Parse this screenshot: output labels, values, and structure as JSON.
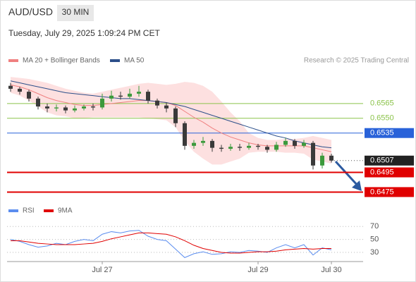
{
  "header": {
    "title": "AUD/USD",
    "timeframe": "30 MIN",
    "timestamp": "Tuesday, July 29, 2025 1:09:24 PM CET",
    "credit": "Research © 2025 Trading Central"
  },
  "chart_data": [
    {
      "type": "candlestick",
      "categories": [
        null,
        null,
        null,
        null,
        null,
        null,
        null,
        null,
        null,
        null,
        "Jul 27",
        null,
        null,
        null,
        null,
        null,
        null,
        null,
        null,
        null,
        null,
        null,
        null,
        null,
        null,
        null,
        null,
        "Jul 29",
        null,
        null,
        null,
        null,
        null,
        null,
        null,
        "Jul 30"
      ],
      "open": [
        0.6583,
        0.658,
        0.6577,
        0.657,
        0.6562,
        0.656,
        0.6561,
        0.6558,
        0.656,
        0.6562,
        0.6561,
        0.657,
        0.6573,
        0.6572,
        0.6575,
        0.6577,
        0.6568,
        0.6563,
        0.656,
        0.6545,
        0.6522,
        0.6525,
        0.6527,
        0.652,
        0.6519,
        0.6521,
        0.652,
        0.6522,
        0.6521,
        0.6518,
        0.6523,
        0.6527,
        0.6522,
        0.6525,
        0.6502,
        0.6512
      ],
      "high": [
        0.6586,
        0.6582,
        0.6579,
        0.6572,
        0.6565,
        0.6564,
        0.6563,
        0.6563,
        0.6564,
        0.6565,
        0.6575,
        0.6578,
        0.6577,
        0.658,
        0.6583,
        0.6579,
        0.657,
        0.6566,
        0.6562,
        0.6547,
        0.6528,
        0.6531,
        0.6529,
        0.6523,
        0.6524,
        0.6524,
        0.6525,
        0.6524,
        0.6523,
        0.6526,
        0.653,
        0.6529,
        0.6528,
        0.6527,
        0.6515,
        0.6514
      ],
      "low": [
        0.6577,
        0.6574,
        0.6567,
        0.6559,
        0.6556,
        0.6557,
        0.6555,
        0.6556,
        0.6558,
        0.6558,
        0.6559,
        0.6567,
        0.6569,
        0.657,
        0.6572,
        0.6565,
        0.656,
        0.6556,
        0.6541,
        0.6518,
        0.6519,
        0.6522,
        0.6516,
        0.6516,
        0.6517,
        0.6517,
        0.6518,
        0.6518,
        0.6515,
        0.6516,
        0.6521,
        0.6519,
        0.652,
        0.6498,
        0.6499,
        0.6505
      ],
      "close": [
        0.658,
        0.6577,
        0.657,
        0.6562,
        0.656,
        0.6561,
        0.6558,
        0.656,
        0.6562,
        0.6561,
        0.657,
        0.6573,
        0.6572,
        0.6575,
        0.6577,
        0.6568,
        0.6563,
        0.656,
        0.6545,
        0.6522,
        0.6525,
        0.6527,
        0.652,
        0.6519,
        0.6521,
        0.652,
        0.6522,
        0.6521,
        0.6518,
        0.6523,
        0.6527,
        0.6522,
        0.6525,
        0.6502,
        0.6512,
        0.6507
      ],
      "up_color": "#3c9a3c",
      "down_color": "#3a3a3a",
      "series": [
        {
          "name": "MA 20 + Bollinger Bands",
          "color": "#f08080",
          "values": [
            0.6584,
            0.6582,
            0.6579,
            0.6575,
            0.6571,
            0.6568,
            0.6566,
            0.6564,
            0.6563,
            0.6563,
            0.6564,
            0.6565,
            0.6566,
            0.6567,
            0.6568,
            0.6568,
            0.6567,
            0.6566,
            0.6563,
            0.6557,
            0.6551,
            0.6546,
            0.654,
            0.6535,
            0.6531,
            0.6528,
            0.6525,
            0.6523,
            0.6522,
            0.6522,
            0.6522,
            0.6522,
            0.6522,
            0.652,
            0.6518,
            0.6516
          ]
        },
        {
          "name": "MA 50",
          "color": "#2c4f8a",
          "values": [
            0.6588,
            0.6586,
            0.6584,
            0.6582,
            0.658,
            0.6578,
            0.6576,
            0.6575,
            0.6574,
            0.6573,
            0.6572,
            0.6571,
            0.657,
            0.657,
            0.6569,
            0.6568,
            0.6567,
            0.6566,
            0.6564,
            0.6562,
            0.6559,
            0.6556,
            0.6553,
            0.655,
            0.6547,
            0.6544,
            0.6541,
            0.6538,
            0.6535,
            0.6532,
            0.653,
            0.6527,
            0.6525,
            0.6523,
            0.6521,
            0.652
          ]
        }
      ],
      "bb_color": "#fde0e0",
      "bb_upper": [
        0.6592,
        0.6591,
        0.659,
        0.6588,
        0.6586,
        0.6583,
        0.658,
        0.6578,
        0.6576,
        0.6575,
        0.6577,
        0.6579,
        0.6581,
        0.6583,
        0.6585,
        0.6586,
        0.6585,
        0.6584,
        0.6585,
        0.6587,
        0.6586,
        0.6583,
        0.6577,
        0.6567,
        0.6556,
        0.6547,
        0.6535,
        0.653,
        0.6528,
        0.6528,
        0.6529,
        0.6529,
        0.653,
        0.6532,
        0.653,
        0.6528
      ],
      "bb_lower": [
        0.6576,
        0.6573,
        0.6568,
        0.6562,
        0.6556,
        0.6553,
        0.6552,
        0.655,
        0.655,
        0.6551,
        0.6551,
        0.6551,
        0.6551,
        0.6551,
        0.6551,
        0.655,
        0.6549,
        0.6548,
        0.6541,
        0.6527,
        0.6516,
        0.6509,
        0.6503,
        0.6503,
        0.6506,
        0.6509,
        0.6515,
        0.6516,
        0.6516,
        0.6516,
        0.6515,
        0.6515,
        0.6514,
        0.6508,
        0.6506,
        0.6504
      ],
      "ylim": [
        0.6466,
        0.66
      ],
      "levels": [
        {
          "value": 0.6565,
          "label": "0.6565",
          "color": "#8bc34a",
          "style": "text"
        },
        {
          "value": 0.655,
          "label": "0.6550",
          "color": "#8bc34a",
          "style": "text"
        },
        {
          "value": 0.6535,
          "label": "0.6535",
          "color": "#2962d9",
          "style": "box"
        },
        {
          "value": 0.6507,
          "label": "0.6507",
          "color": "#222222",
          "style": "last"
        },
        {
          "value": 0.6495,
          "label": "0.6495",
          "color": "#e00000",
          "style": "box"
        },
        {
          "value": 0.6475,
          "label": "0.6475",
          "color": "#e00000",
          "style": "box"
        }
      ]
    },
    {
      "type": "line",
      "series": [
        {
          "name": "RSI",
          "color": "#5b8def",
          "values": [
            50,
            47,
            42,
            38,
            40,
            44,
            42,
            47,
            50,
            48,
            58,
            62,
            60,
            63,
            64,
            55,
            50,
            48,
            35,
            22,
            28,
            31,
            27,
            28,
            31,
            30,
            33,
            32,
            30,
            37,
            42,
            37,
            42,
            26,
            37,
            34
          ]
        },
        {
          "name": "9MA",
          "color": "#e00000",
          "values": [
            48,
            48,
            46,
            44,
            43,
            42,
            42,
            42,
            43,
            44,
            47,
            51,
            54,
            57,
            60,
            60,
            59,
            58,
            54,
            48,
            41,
            36,
            33,
            30,
            29,
            29,
            30,
            31,
            31,
            32,
            34,
            35,
            36,
            35,
            36,
            36
          ]
        }
      ],
      "ylim": [
        17,
        80
      ],
      "yticks": [
        30,
        50,
        70
      ],
      "grid": true
    }
  ]
}
